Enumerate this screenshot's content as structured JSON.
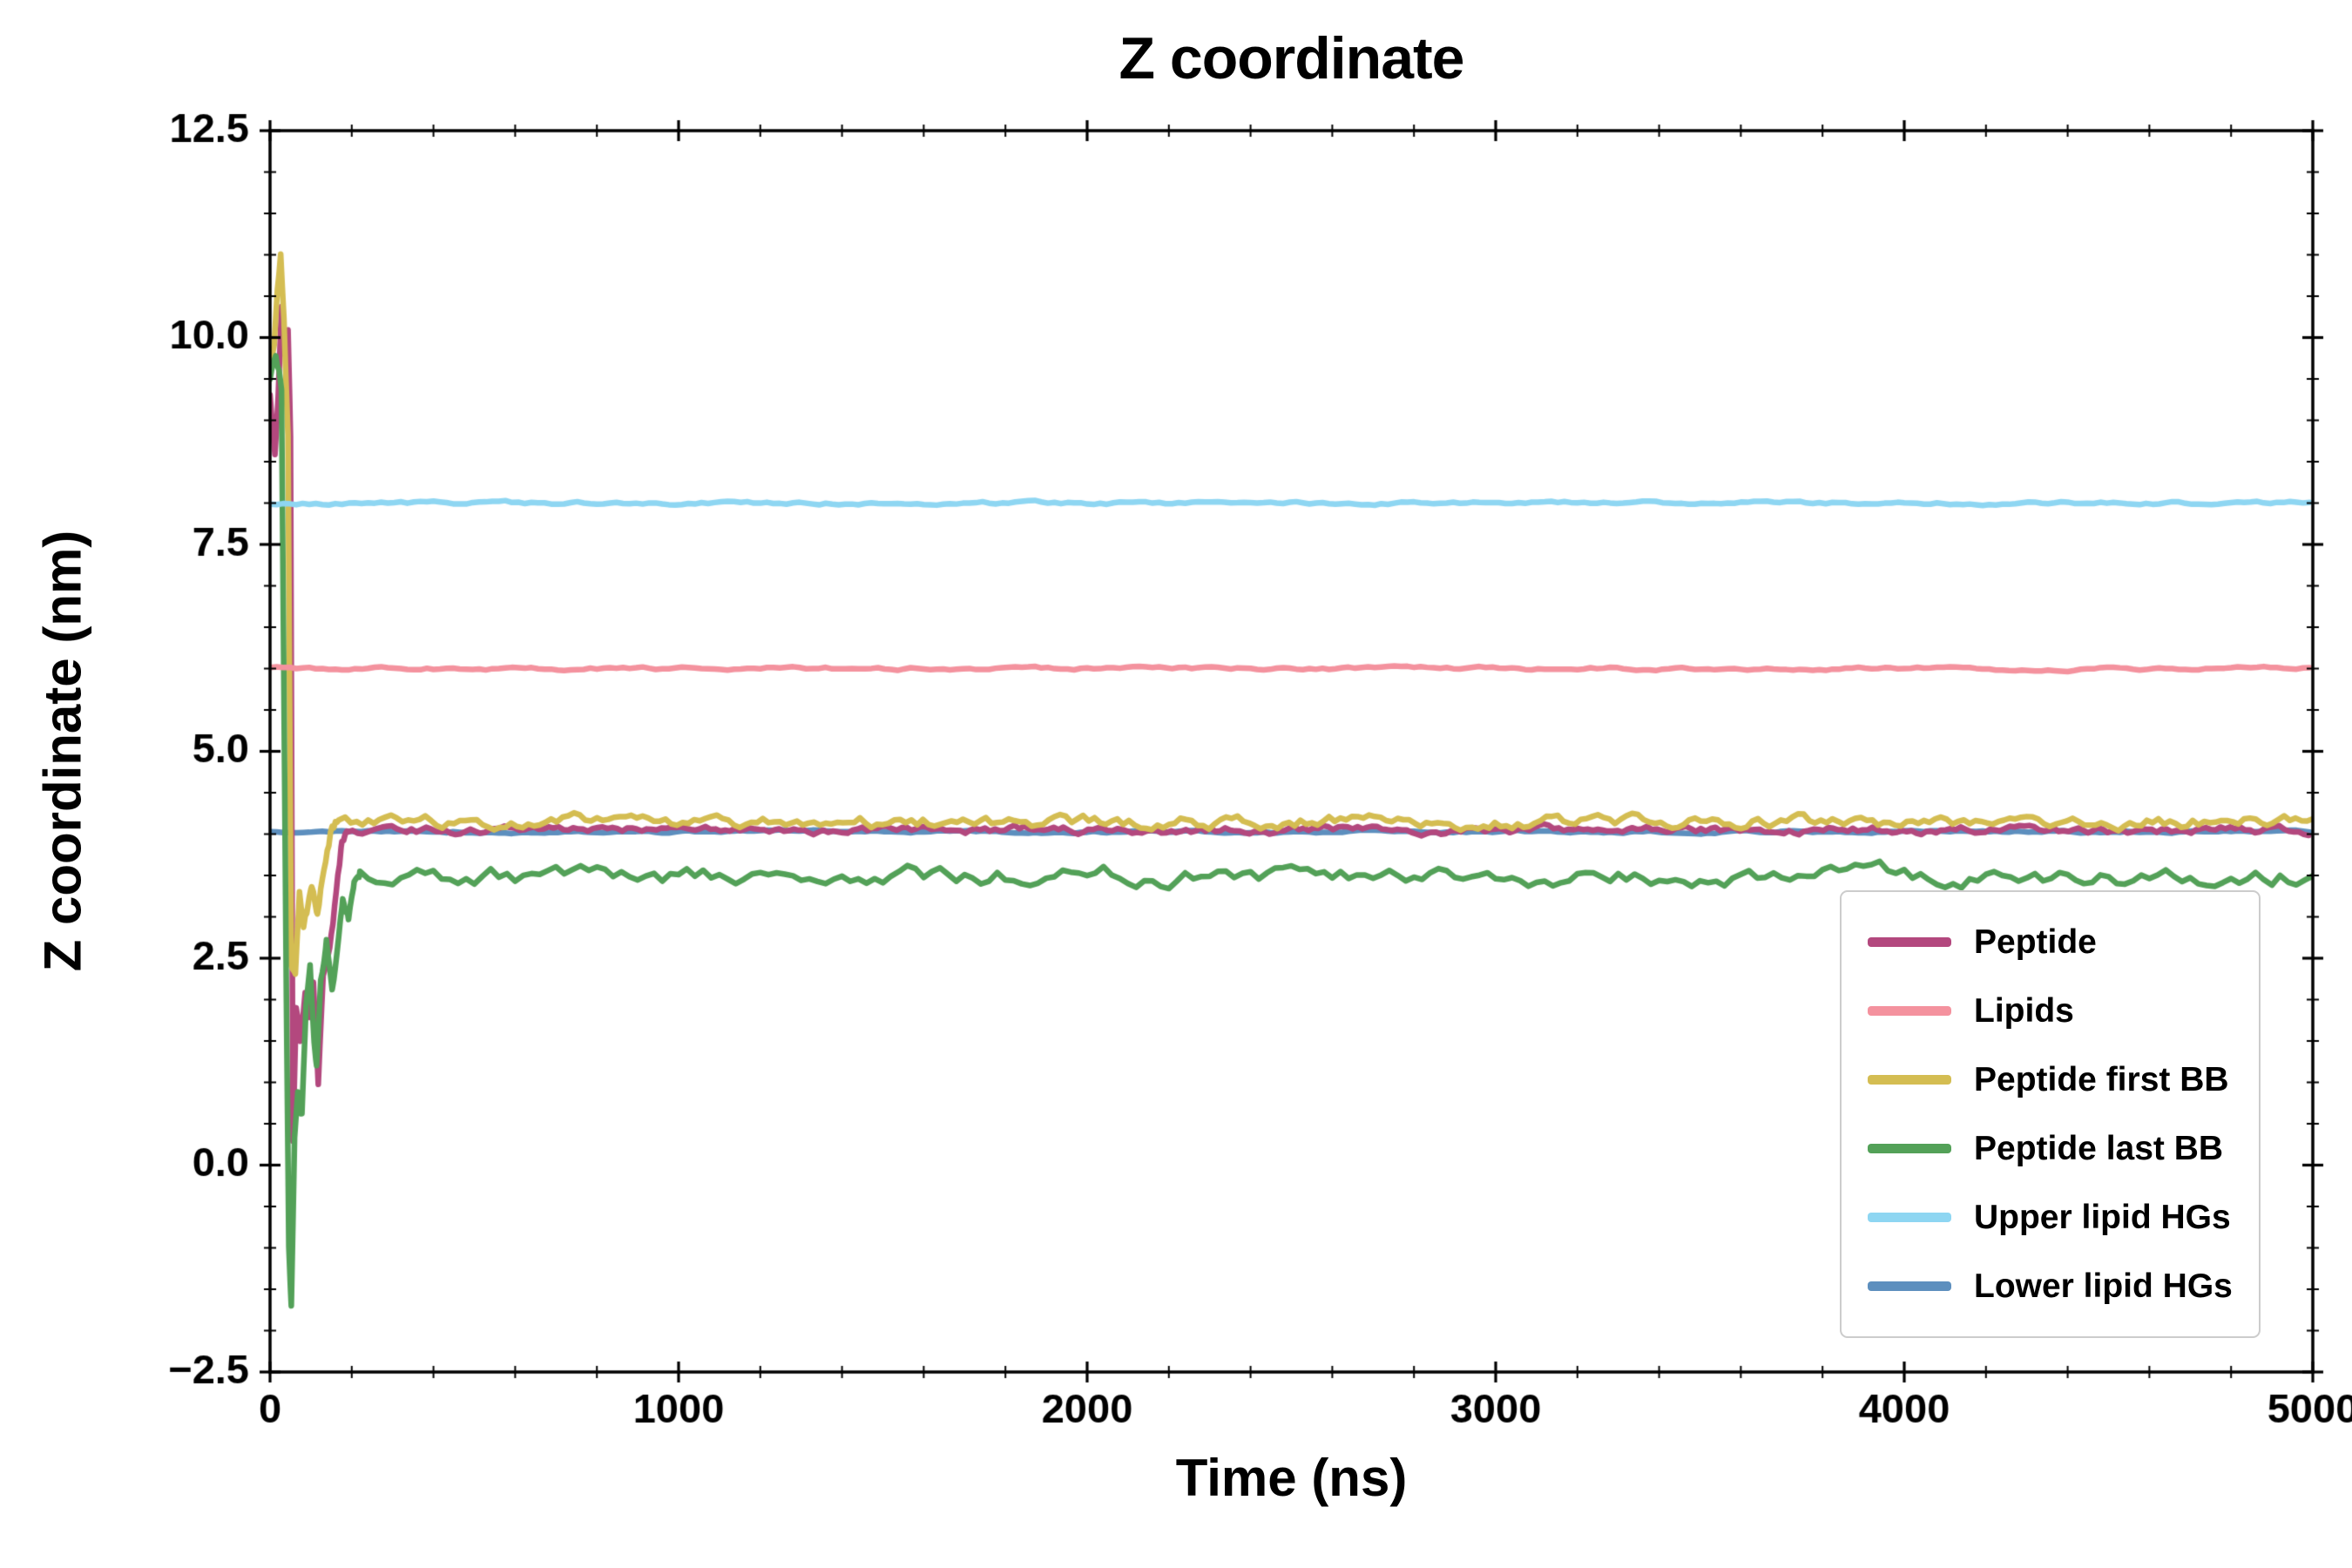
{
  "chart_data": {
    "type": "line",
    "title": "Z coordinate",
    "xlabel": "Time (ns)",
    "ylabel": "Z coordinate (nm)",
    "xlim": [
      0,
      5000
    ],
    "ylim": [
      -2.5,
      12.5
    ],
    "xticks": [
      {
        "v": 0,
        "label": "0"
      },
      {
        "v": 1000,
        "label": "1000"
      },
      {
        "v": 2000,
        "label": "2000"
      },
      {
        "v": 3000,
        "label": "3000"
      },
      {
        "v": 4000,
        "label": "4000"
      },
      {
        "v": 5000,
        "label": "5000"
      }
    ],
    "yticks": [
      {
        "v": -2.5,
        "label": "−2.5"
      },
      {
        "v": 0.0,
        "label": "0.0"
      },
      {
        "v": 2.5,
        "label": "2.5"
      },
      {
        "v": 5.0,
        "label": "5.0"
      },
      {
        "v": 7.5,
        "label": "7.5"
      },
      {
        "v": 10.0,
        "label": "10.0"
      },
      {
        "v": 12.5,
        "label": "12.5"
      }
    ],
    "x_minor_step": 200,
    "y_minor_step": 0.5,
    "grid": false,
    "legend_position": "lower right",
    "background": "#ffffff",
    "axis_color": "#000000",
    "series": [
      {
        "name": "Peptide",
        "color": "#b3487e",
        "linewidth": 6.5,
        "baseline": 4.05,
        "noise": 0.05,
        "flat_from": 190,
        "step": 12,
        "transient": [
          [
            0,
            9.3
          ],
          [
            12,
            8.6
          ],
          [
            20,
            9.3
          ],
          [
            28,
            10.4
          ],
          [
            36,
            9.8
          ],
          [
            44,
            10.1
          ],
          [
            50,
            8.8
          ],
          [
            56,
            0.3
          ],
          [
            64,
            1.9
          ],
          [
            74,
            1.5
          ],
          [
            86,
            2.1
          ],
          [
            96,
            1.8
          ],
          [
            106,
            2.2
          ],
          [
            118,
            1.0
          ],
          [
            130,
            2.3
          ],
          [
            146,
            2.6
          ],
          [
            162,
            3.3
          ],
          [
            176,
            3.9
          ],
          [
            190,
            4.05
          ]
        ]
      },
      {
        "name": "Lipids",
        "color": "#f4929e",
        "linewidth": 6.5,
        "baseline": 6.0,
        "noise": 0.02,
        "flat_from": 0,
        "step": 16,
        "transient": []
      },
      {
        "name": "Peptide first BB",
        "color": "#d4bd52",
        "linewidth": 6.5,
        "baseline": 4.15,
        "noise": 0.08,
        "flat_from": 170,
        "step": 14,
        "transient": [
          [
            0,
            9.6
          ],
          [
            10,
            9.9
          ],
          [
            18,
            10.6
          ],
          [
            26,
            11.0
          ],
          [
            34,
            10.2
          ],
          [
            44,
            8.8
          ],
          [
            52,
            2.4
          ],
          [
            62,
            2.3
          ],
          [
            72,
            3.3
          ],
          [
            82,
            2.9
          ],
          [
            92,
            3.1
          ],
          [
            102,
            3.4
          ],
          [
            116,
            3.0
          ],
          [
            132,
            3.6
          ],
          [
            152,
            4.1
          ],
          [
            170,
            4.15
          ]
        ]
      },
      {
        "name": "Peptide last BB",
        "color": "#53a158",
        "linewidth": 6.5,
        "baseline": 3.5,
        "noise": 0.12,
        "flat_from": 220,
        "step": 20,
        "transient": [
          [
            0,
            9.5
          ],
          [
            14,
            9.8
          ],
          [
            28,
            9.4
          ],
          [
            40,
            2.0
          ],
          [
            46,
            -1.0
          ],
          [
            52,
            -1.7
          ],
          [
            60,
            0.3
          ],
          [
            68,
            0.9
          ],
          [
            78,
            0.6
          ],
          [
            88,
            1.9
          ],
          [
            98,
            2.4
          ],
          [
            108,
            1.5
          ],
          [
            114,
            1.2
          ],
          [
            124,
            2.2
          ],
          [
            138,
            2.7
          ],
          [
            152,
            2.1
          ],
          [
            164,
            2.6
          ],
          [
            178,
            3.2
          ],
          [
            192,
            3.0
          ],
          [
            206,
            3.4
          ],
          [
            220,
            3.5
          ]
        ]
      },
      {
        "name": "Upper lipid HGs",
        "color": "#8ed6f2",
        "linewidth": 6.5,
        "baseline": 8.0,
        "noise": 0.02,
        "flat_from": 0,
        "step": 16,
        "transient": []
      },
      {
        "name": "Lower lipid HGs",
        "color": "#5d8fbe",
        "linewidth": 6.5,
        "baseline": 4.03,
        "noise": 0.015,
        "flat_from": 0,
        "step": 16,
        "transient": []
      }
    ],
    "draw_order": [
      5,
      0,
      2,
      3,
      1,
      4
    ]
  }
}
